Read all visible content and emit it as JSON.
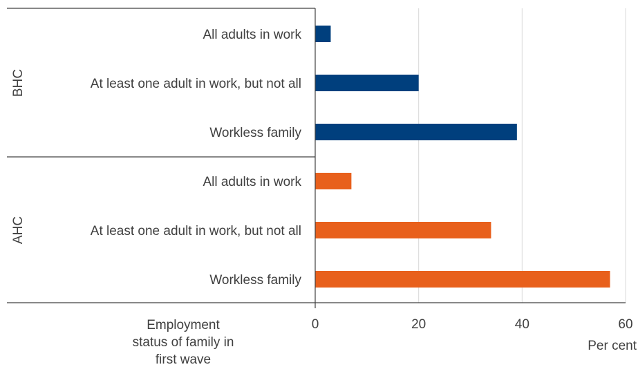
{
  "chart_data": {
    "type": "bar",
    "orientation": "horizontal",
    "groups": [
      {
        "label": "BHC",
        "color": "#003f7d",
        "categories": [
          "All adults in work",
          "At least one adult in work, but not all",
          "Workless family"
        ],
        "values": [
          3,
          20,
          39
        ]
      },
      {
        "label": "AHC",
        "color": "#e8601c",
        "categories": [
          "All adults in work",
          "At least one adult in work, but not all",
          "Workless family"
        ],
        "values": [
          7,
          34,
          57
        ]
      }
    ],
    "xlim": [
      0,
      60
    ],
    "xticks": [
      "0",
      "20",
      "40",
      "60"
    ],
    "xlabel": "Per cent",
    "ylabel_lines": [
      "Employment",
      "status of family in",
      "first wave"
    ],
    "grid": true
  }
}
